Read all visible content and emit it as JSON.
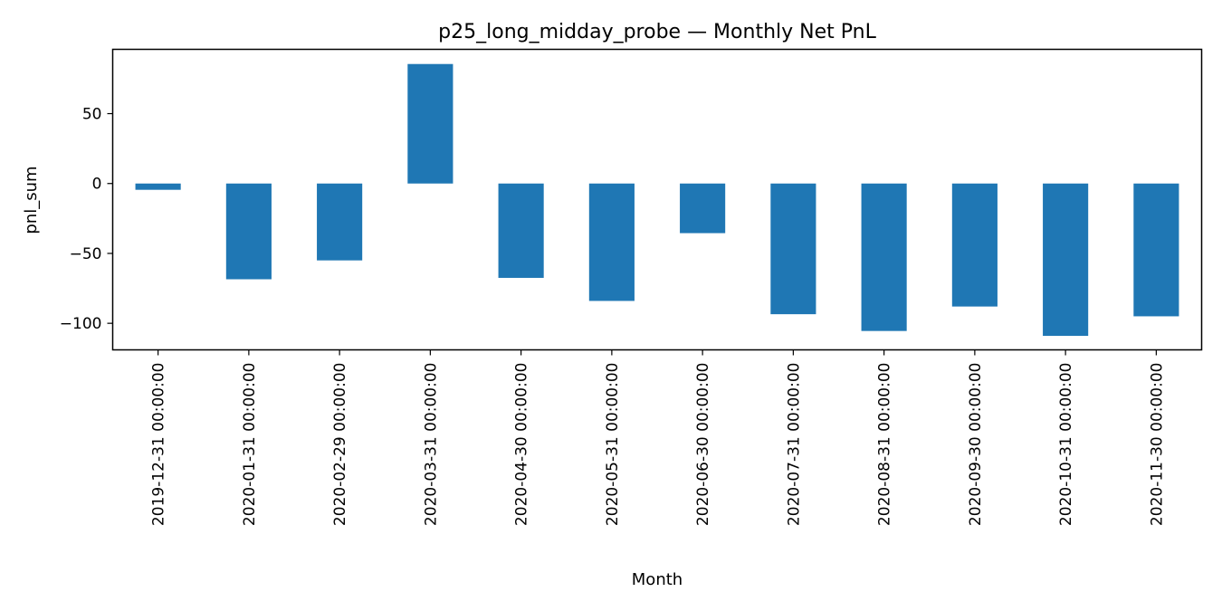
{
  "chart_data": {
    "type": "bar",
    "title": "p25_long_midday_probe — Monthly Net PnL",
    "xlabel": "Month",
    "ylabel": "pnl_sum",
    "categories": [
      "2019-12-31 00:00:00",
      "2020-01-31 00:00:00",
      "2020-02-29 00:00:00",
      "2020-03-31 00:00:00",
      "2020-04-30 00:00:00",
      "2020-05-31 00:00:00",
      "2020-06-30 00:00:00",
      "2020-07-31 00:00:00",
      "2020-08-31 00:00:00",
      "2020-09-30 00:00:00",
      "2020-10-31 00:00:00",
      "2020-11-30 00:00:00"
    ],
    "values": [
      -4.5,
      -68.5,
      -55,
      85.5,
      -67.5,
      -84,
      -35.5,
      -93.5,
      -105.5,
      -88,
      -109,
      -95
    ],
    "ylim": [
      -119,
      96
    ],
    "yticks": [
      -100,
      -50,
      0,
      50
    ],
    "ytick_labels": [
      "−100",
      "−50",
      "0",
      "50"
    ],
    "bar_color": "#1f77b4",
    "grid": false,
    "legend": "none"
  }
}
